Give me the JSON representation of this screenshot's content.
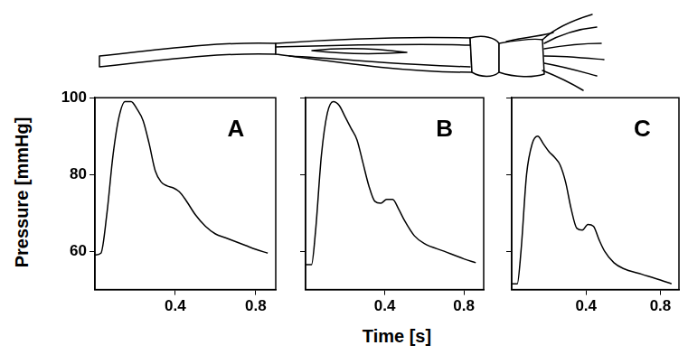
{
  "chart_data": [
    {
      "type": "line",
      "title": "A",
      "ylabel": "Pressure [mmHg]",
      "x": [
        0,
        0.03,
        0.06,
        0.09,
        0.12,
        0.15,
        0.18,
        0.21,
        0.24,
        0.27,
        0.3,
        0.33,
        0.36,
        0.39,
        0.42,
        0.45,
        0.5,
        0.55,
        0.6,
        0.65,
        0.7,
        0.75,
        0.8,
        0.86
      ],
      "values": [
        59,
        59.5,
        70,
        85,
        95,
        99,
        99,
        97,
        94,
        88,
        81,
        78,
        77,
        76.5,
        75.5,
        73.5,
        69.5,
        66.5,
        64.5,
        63.5,
        62.5,
        61.5,
        60.5,
        59.5
      ],
      "color": "#000000",
      "line_style": "solid",
      "xlim": [
        0,
        0.9
      ],
      "ylim": [
        50,
        100
      ],
      "xticks": [
        0.4,
        0.8
      ],
      "yticks": [
        60,
        80,
        100
      ],
      "grid": false
    },
    {
      "type": "line",
      "title": "B",
      "xlabel": "Time [s]",
      "x": [
        0,
        0.03,
        0.05,
        0.08,
        0.11,
        0.14,
        0.17,
        0.2,
        0.23,
        0.26,
        0.29,
        0.32,
        0.35,
        0.38,
        0.41,
        0.44,
        0.47,
        0.5,
        0.55,
        0.6,
        0.7,
        0.8,
        0.86
      ],
      "values": [
        56.5,
        56.5,
        65,
        85,
        96,
        99,
        98,
        95,
        92,
        89,
        83,
        77,
        73,
        72.5,
        73.5,
        73.5,
        71,
        68,
        64,
        62,
        60,
        58,
        57
      ],
      "color": "#000000",
      "line_style": "solid",
      "xlim": [
        0,
        0.9
      ],
      "ylim": [
        50,
        100
      ],
      "xticks": [
        0.4,
        0.8
      ],
      "yticks": [
        60,
        80,
        100
      ],
      "grid": false,
      "tick_labels": "x"
    },
    {
      "type": "line",
      "title": "C",
      "x": [
        0,
        0.03,
        0.05,
        0.08,
        0.11,
        0.14,
        0.17,
        0.2,
        0.23,
        0.26,
        0.29,
        0.32,
        0.35,
        0.38,
        0.41,
        0.44,
        0.47,
        0.5,
        0.55,
        0.6,
        0.7,
        0.8,
        0.86
      ],
      "values": [
        51.5,
        51.5,
        60,
        80,
        88,
        90,
        88,
        86,
        84.5,
        82.5,
        78,
        71,
        66,
        65.5,
        67,
        66.5,
        63,
        60,
        57,
        55.5,
        54,
        52.5,
        51.5
      ],
      "color": "#000000",
      "line_style": "solid",
      "xlim": [
        0,
        0.9
      ],
      "ylim": [
        50,
        100
      ],
      "xticks": [
        0.4,
        0.8
      ],
      "yticks": [
        60,
        80,
        100
      ],
      "grid": false,
      "tick_labels": "x"
    }
  ]
}
